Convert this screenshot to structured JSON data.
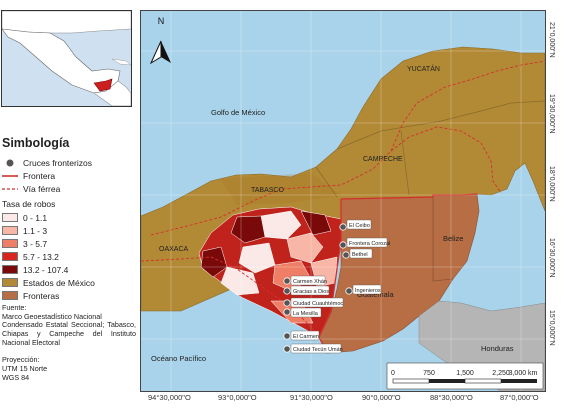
{
  "legend": {
    "title": "Simbología",
    "items": [
      {
        "label": "Cruces fronterizos",
        "kind": "dot",
        "color": "#555555"
      },
      {
        "label": "Frontera",
        "kind": "line",
        "color": "#d32f2f"
      },
      {
        "label": "Vía férrea",
        "kind": "dashed",
        "color": "#d32f2f"
      }
    ],
    "rate_title": "Tasa de robos",
    "classes": [
      {
        "label": "0 - 1.1",
        "color": "#fbe9e7"
      },
      {
        "label": "1.1 - 3",
        "color": "#f8b6a6"
      },
      {
        "label": "3 - 5.7",
        "color": "#ef7e66"
      },
      {
        "label": "5.7 - 13.2",
        "color": "#d8261f"
      },
      {
        "label": "13.2 - 107.4",
        "color": "#7a0a0a"
      }
    ],
    "others": [
      {
        "label": "Estados de México",
        "color": "#b28a36"
      },
      {
        "label": "Fronteras",
        "color": "#b76e45"
      }
    ]
  },
  "source": {
    "heading": "Fuente:",
    "lines": [
      "Marco Geoestadístico Nacional",
      "Condensado Estatal Seccional; Tabasco, Chiapas y Campeche del Instituto Nacional Electoral"
    ]
  },
  "projection": {
    "heading": "Proyección:",
    "lines": [
      "UTM 15 Norte",
      "WGS 84"
    ]
  },
  "map": {
    "north_arrow": "N",
    "water_labels": [
      "Golfo de México",
      "Océano Pacífico"
    ],
    "state_labels": [
      "YUCATÁN",
      "CAMPECHE",
      "TABASCO",
      "OAXACA"
    ],
    "country_labels": [
      "Belize",
      "Guatemala",
      "Honduras"
    ],
    "crossings": [
      "El Ceibo",
      "Frontera Corozal",
      "Bethel",
      "Ingenieros",
      "Carmen Xhán",
      "Gracias a Dios",
      "Ciudad Cuauhtémoc",
      "La Mesilla",
      "El Carmen",
      "Ciudad Tecún Umán"
    ],
    "scale": {
      "labels": [
        "0",
        "750",
        "1,500",
        "2,250",
        "3,000 km"
      ]
    },
    "x_ticks": [
      "94°30,000\"O",
      "93°0,000\"O",
      "91°30,000\"O",
      "90°0,000\"O",
      "88°30,000\"O",
      "87°0,000\"O"
    ],
    "y_ticks": [
      "21°0,000\"N",
      "19°30,000\"N",
      "18°0,000\"N",
      "16°30,000\"N",
      "15°0,000\"N"
    ],
    "colors": {
      "water": "#a9d3ea",
      "mexico": "#b28a36",
      "foreign": "#b76e45",
      "border": "#d32f2f"
    }
  }
}
